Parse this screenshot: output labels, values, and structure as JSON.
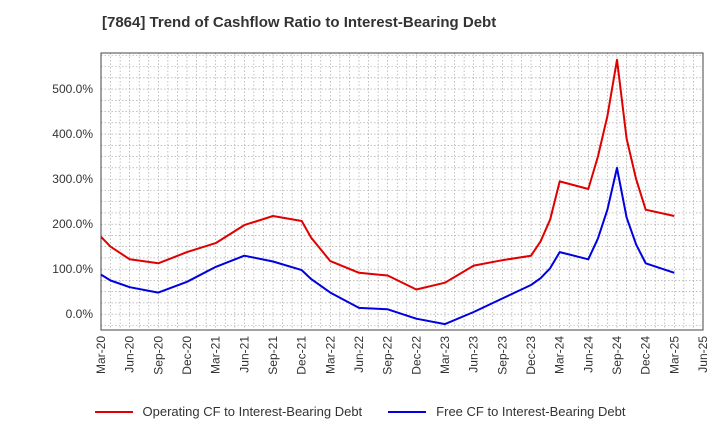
{
  "chart_data": {
    "type": "line",
    "title": "[7864]  Trend of Cashflow Ratio to Interest-Bearing Debt",
    "xlabel": "",
    "ylabel": "",
    "x_ticks": [
      "Mar-20",
      "Jun-20",
      "Sep-20",
      "Dec-20",
      "Mar-21",
      "Jun-21",
      "Sep-21",
      "Dec-21",
      "Mar-22",
      "Jun-22",
      "Sep-22",
      "Dec-22",
      "Mar-23",
      "Jun-23",
      "Sep-23",
      "Dec-23",
      "Mar-24",
      "Jun-24",
      "Sep-24",
      "Dec-24",
      "Mar-25",
      "Jun-25"
    ],
    "y_ticks": [
      "0.0%",
      "100.0%",
      "200.0%",
      "300.0%",
      "400.0%",
      "500.0%"
    ],
    "y_tick_values": [
      0,
      100,
      200,
      300,
      400,
      500
    ],
    "ylim": [
      -35,
      580
    ],
    "grid": true,
    "legend_position": "bottom",
    "x": [
      "Mar-20",
      "Apr-20",
      "Jun-20",
      "Sep-20",
      "Dec-20",
      "Mar-21",
      "Jun-21",
      "Sep-21",
      "Dec-21",
      "Jan-22",
      "Mar-22",
      "Jun-22",
      "Sep-22",
      "Dec-22",
      "Mar-23",
      "Jun-23",
      "Sep-23",
      "Dec-23",
      "Jan-24",
      "Feb-24",
      "Mar-24",
      "Jun-24",
      "Jul-24",
      "Aug-24",
      "Sep-24",
      "Oct-24",
      "Nov-24",
      "Dec-24",
      "Mar-25"
    ],
    "series": [
      {
        "name": "Operating CF to Interest-Bearing Debt",
        "color": "#e00000",
        "values": [
          172,
          150,
          122,
          113,
          138,
          158,
          198,
          218,
          207,
          170,
          118,
          92,
          86,
          55,
          70,
          108,
          120,
          130,
          162,
          210,
          295,
          278,
          350,
          440,
          565,
          390,
          300,
          232,
          218
        ]
      },
      {
        "name": "Free CF to Interest-Bearing Debt",
        "color": "#0000e0",
        "values": [
          88,
          75,
          60,
          48,
          72,
          105,
          130,
          117,
          98,
          78,
          48,
          14,
          11,
          -10,
          -22,
          5,
          35,
          65,
          80,
          102,
          138,
          122,
          168,
          232,
          325,
          215,
          155,
          113,
          92
        ]
      }
    ]
  }
}
